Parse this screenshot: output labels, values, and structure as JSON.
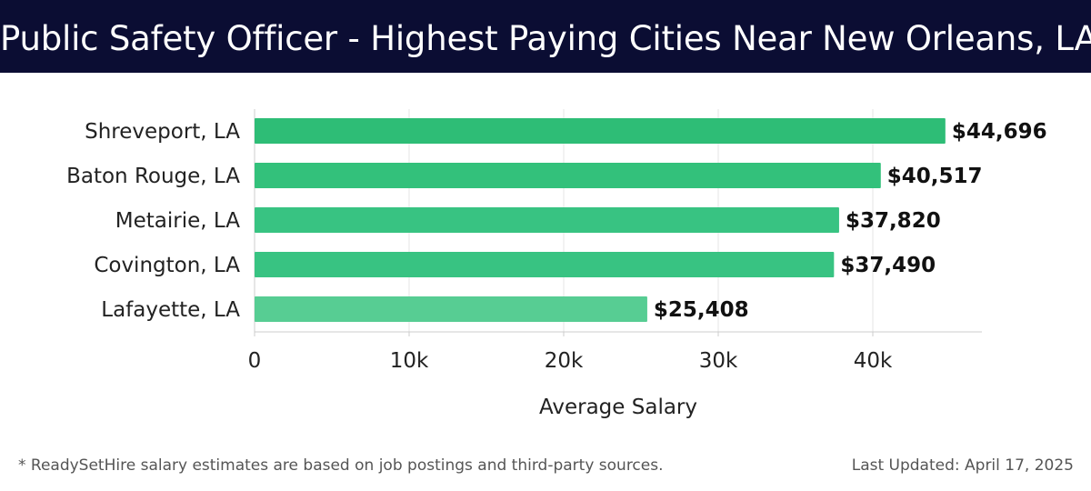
{
  "header": {
    "title": "Public Safety Officer - Highest Paying Cities Near New Orleans, LA"
  },
  "chart_data": {
    "type": "bar",
    "orientation": "horizontal",
    "title": "Public Safety Officer - Highest Paying Cities Near New Orleans, LA",
    "categories": [
      "Shreveport, LA",
      "Baton Rouge, LA",
      "Metairie, LA",
      "Covington, LA",
      "Lafayette, LA"
    ],
    "values": [
      44696,
      40517,
      37820,
      37490,
      25408
    ],
    "value_labels": [
      "$44,696",
      "$40,517",
      "$37,820",
      "$37,490",
      "$25,408"
    ],
    "bar_colors": [
      "#2ebd76",
      "#33c17b",
      "#38c382",
      "#38c382",
      "#57cd93"
    ],
    "xlabel": "Average Salary",
    "ylabel": "",
    "xlim": [
      0,
      47000
    ],
    "xticks": [
      0,
      10000,
      20000,
      30000,
      40000
    ],
    "xtick_labels": [
      "0",
      "10k",
      "20k",
      "30k",
      "40k"
    ],
    "grid": true
  },
  "footer": {
    "note": "* ReadySetHire salary estimates are based on job postings and third-party sources.",
    "updated": "Last Updated: April 17, 2025"
  }
}
